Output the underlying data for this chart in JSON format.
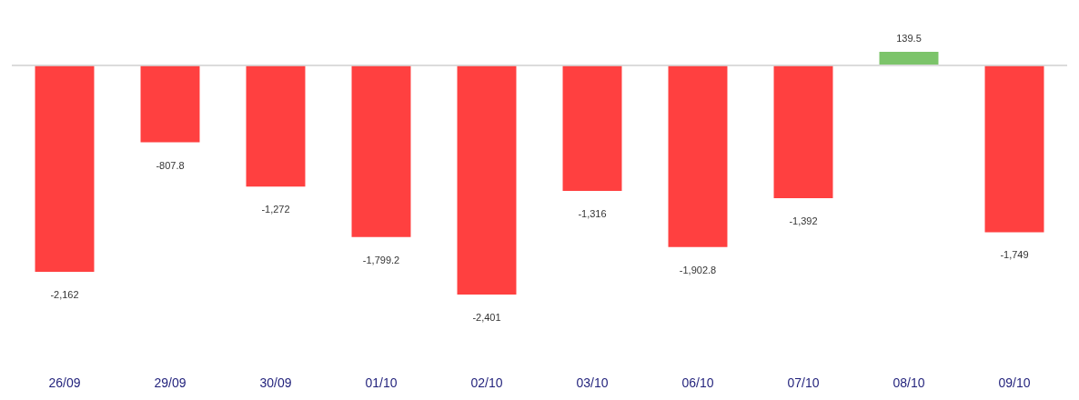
{
  "chart_data": {
    "type": "bar",
    "categories": [
      "26/09",
      "29/09",
      "30/09",
      "01/10",
      "02/10",
      "03/10",
      "06/10",
      "07/10",
      "08/10",
      "09/10"
    ],
    "values": [
      -2162,
      -807.8,
      -1272,
      -1799.2,
      -2401,
      -1316,
      -1902.8,
      -1392,
      139.5,
      -1749
    ],
    "value_labels": [
      "-2,162",
      "-807.8",
      "-1,272",
      "-1,799.2",
      "-2,401",
      "-1,316",
      "-1,902.8",
      "-1,392",
      "139.5",
      "-1,749"
    ],
    "colors": [
      "#ff4040",
      "#ff4040",
      "#ff4040",
      "#ff4040",
      "#ff4040",
      "#ff4040",
      "#ff4040",
      "#ff4040",
      "#7cc46a",
      "#ff4040"
    ]
  }
}
